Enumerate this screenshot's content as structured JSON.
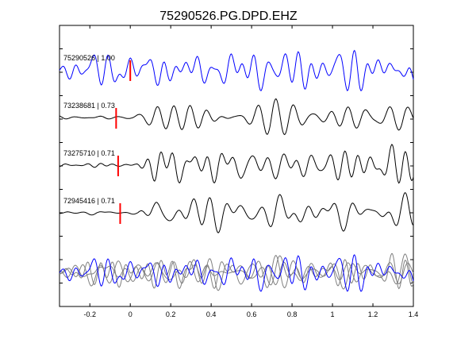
{
  "chart_data": {
    "type": "line",
    "title": "75290526.PG.DPD.EHZ",
    "xlim": [
      -0.35,
      1.4
    ],
    "xticks": [
      -0.2,
      0,
      0.2,
      0.4,
      0.6,
      0.8,
      1,
      1.2,
      1.4
    ],
    "xtick_labels": [
      "-0.2",
      "0",
      "0.2",
      "0.4",
      "0.6",
      "0.8",
      "1",
      "1.2",
      "1.4"
    ],
    "pick_time_note": "vertical red marker per trace",
    "traces": [
      {
        "label": "75290526 | 1.00",
        "pick_x": 0.0,
        "color": "#0000ff",
        "seed": 1,
        "amp": 1.0,
        "onset": -0.35
      },
      {
        "label": "73238681 | 0.73",
        "pick_x": -0.07,
        "color": "#000000",
        "seed": 2,
        "amp": 1.0,
        "onset": 0.02
      },
      {
        "label": "73275710 | 0.71",
        "pick_x": -0.06,
        "color": "#000000",
        "seed": 3,
        "amp": 1.0,
        "onset": 0.03
      },
      {
        "label": "72945416 | 0.71",
        "pick_x": -0.05,
        "color": "#000000",
        "seed": 4,
        "amp": 1.0,
        "onset": 0.03
      }
    ],
    "overlay": {
      "series": [
        {
          "color": "#0000ff",
          "seed": 1
        },
        {
          "color": "#808080",
          "seed": 2
        },
        {
          "color": "#808080",
          "seed": 3
        },
        {
          "color": "#808080",
          "seed": 4
        }
      ]
    },
    "colors": {
      "pick": "#ff0000",
      "primary": "#0000ff",
      "secondary": "#000000",
      "overlay": "#808080"
    }
  }
}
